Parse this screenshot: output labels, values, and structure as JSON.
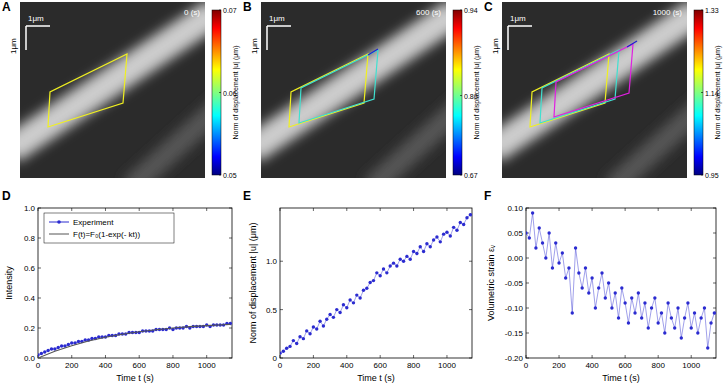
{
  "image_panels": [
    {
      "label": "A",
      "time_label": "0 (s)",
      "scale_label_x": "1μm",
      "scale_label_y": "1μm",
      "colorbar_title": "Norm of displacement |u| (μm)",
      "colorbar_range": [
        0.05,
        0.07
      ],
      "colorbar_ticks": [
        0.05,
        0.06,
        0.07
      ]
    },
    {
      "label": "B",
      "time_label": "600 (s)",
      "scale_label_x": "1μm",
      "scale_label_y": "1μm",
      "colorbar_title": "Norm of displacement |u| (μm)",
      "colorbar_range": [
        0.67,
        0.94
      ],
      "colorbar_ticks": [
        0.67,
        {
          "value": 0.8,
          "label": "0.80"
        },
        0.94
      ]
    },
    {
      "label": "C",
      "time_label": "1000 (s)",
      "scale_label_x": "1μm",
      "scale_label_y": "1μm",
      "colorbar_title": "Norm of displacement |u| (μm)",
      "colorbar_range": [
        0.95,
        1.33
      ],
      "colorbar_ticks": [
        0.95,
        1.14,
        1.33
      ]
    }
  ],
  "chart_data": [
    {
      "type": "line",
      "panel_label": "D",
      "x_label": "Time t (s)",
      "y_label": "Intensity",
      "xlim": [
        0,
        1150
      ],
      "ylim": [
        0,
        1
      ],
      "xticks": [
        0,
        200,
        400,
        600,
        800,
        1000
      ],
      "yticks": [
        {
          "value": 0,
          "label": "0.0"
        },
        0.2,
        0.4,
        0.6,
        0.8,
        {
          "value": 1,
          "label": "1.0"
        }
      ],
      "grid": false,
      "legend": "upper left",
      "series": [
        {
          "name": "Experiment",
          "color": "#2b2bd0",
          "marker": "circle",
          "line_style": "solid",
          "x": [
            0,
            20,
            40,
            60,
            80,
            100,
            120,
            140,
            160,
            180,
            200,
            220,
            240,
            260,
            280,
            300,
            320,
            340,
            360,
            380,
            400,
            420,
            440,
            460,
            480,
            500,
            520,
            540,
            560,
            580,
            600,
            620,
            640,
            660,
            680,
            700,
            720,
            740,
            760,
            780,
            800,
            820,
            840,
            860,
            880,
            900,
            920,
            940,
            960,
            980,
            1000,
            1020,
            1040,
            1060,
            1080,
            1100,
            1120,
            1140
          ],
          "values": [
            0.02,
            0.03,
            0.04,
            0.05,
            0.06,
            0.06,
            0.07,
            0.08,
            0.08,
            0.09,
            0.1,
            0.1,
            0.11,
            0.11,
            0.12,
            0.12,
            0.13,
            0.13,
            0.14,
            0.14,
            0.14,
            0.15,
            0.15,
            0.15,
            0.16,
            0.16,
            0.16,
            0.17,
            0.17,
            0.17,
            0.17,
            0.18,
            0.18,
            0.18,
            0.18,
            0.19,
            0.19,
            0.19,
            0.19,
            0.2,
            0.19,
            0.2,
            0.2,
            0.2,
            0.21,
            0.2,
            0.21,
            0.21,
            0.21,
            0.21,
            0.22,
            0.21,
            0.22,
            0.22,
            0.22,
            0.22,
            0.23,
            0.23
          ]
        },
        {
          "name": "F(t)=F₀(1-exp(- kt))",
          "color": "#555555",
          "marker": "none",
          "line_style": "solid",
          "x": [
            0,
            100,
            200,
            300,
            400,
            500,
            600,
            700,
            800,
            900,
            1000,
            1100,
            1140
          ],
          "values": [
            0,
            0.045,
            0.082,
            0.113,
            0.138,
            0.158,
            0.175,
            0.188,
            0.2,
            0.209,
            0.216,
            0.222,
            0.224
          ]
        }
      ]
    },
    {
      "type": "line",
      "panel_label": "E",
      "x_label": "Time t (s)",
      "y_label": "Norm of displacement |u| (μm)",
      "xlim": [
        0,
        1150
      ],
      "ylim": [
        0,
        1.55
      ],
      "xticks": [
        0,
        200,
        400,
        600,
        800,
        1000
      ],
      "yticks": [
        0,
        0.5,
        {
          "value": 1,
          "label": "1.0"
        }
      ],
      "grid": false,
      "color": "#2b2bd0",
      "marker": "circle",
      "line_style": "solid",
      "x": [
        0,
        20,
        40,
        60,
        80,
        100,
        120,
        140,
        160,
        180,
        200,
        220,
        240,
        260,
        280,
        300,
        320,
        340,
        360,
        380,
        400,
        420,
        440,
        460,
        480,
        500,
        520,
        540,
        560,
        580,
        600,
        620,
        640,
        660,
        680,
        700,
        720,
        740,
        760,
        780,
        800,
        820,
        840,
        860,
        880,
        900,
        920,
        940,
        960,
        980,
        1000,
        1020,
        1040,
        1060,
        1080,
        1100,
        1120,
        1140
      ],
      "values": [
        0.05,
        0.07,
        0.1,
        0.12,
        0.18,
        0.15,
        0.22,
        0.2,
        0.28,
        0.25,
        0.32,
        0.3,
        0.38,
        0.33,
        0.4,
        0.45,
        0.42,
        0.5,
        0.47,
        0.55,
        0.52,
        0.6,
        0.57,
        0.65,
        0.62,
        0.7,
        0.72,
        0.78,
        0.8,
        0.88,
        0.85,
        0.92,
        0.88,
        0.95,
        0.98,
        0.95,
        1.02,
        1.0,
        1.05,
        1.02,
        1.1,
        1.08,
        1.15,
        1.1,
        1.18,
        1.15,
        1.22,
        1.25,
        1.2,
        1.28,
        1.3,
        1.26,
        1.35,
        1.32,
        1.4,
        1.38,
        1.45,
        1.48
      ]
    },
    {
      "type": "line",
      "panel_label": "F",
      "x_label": "Time t (s)",
      "y_label": "Volumetric strain εᵥ",
      "xlim": [
        0,
        1150
      ],
      "ylim": [
        -0.2,
        0.1
      ],
      "xticks": [
        0,
        200,
        400,
        600,
        800,
        1000
      ],
      "yticks": [
        {
          "value": -0.2,
          "label": "-0.20"
        },
        -0.15,
        {
          "value": -0.1,
          "label": "-0.10"
        },
        -0.05,
        {
          "value": 0,
          "label": "0.00"
        },
        0.05,
        {
          "value": 0.1,
          "label": "0.10"
        }
      ],
      "grid": false,
      "color": "#2b2bd0",
      "marker": "circle",
      "line_style": "solid",
      "x": [
        0,
        20,
        40,
        60,
        80,
        100,
        120,
        140,
        160,
        180,
        200,
        220,
        240,
        260,
        280,
        300,
        320,
        340,
        360,
        380,
        400,
        420,
        440,
        460,
        480,
        500,
        520,
        540,
        560,
        580,
        600,
        620,
        640,
        660,
        680,
        700,
        720,
        740,
        760,
        780,
        800,
        820,
        840,
        860,
        880,
        900,
        920,
        940,
        960,
        980,
        1000,
        1020,
        1040,
        1060,
        1080,
        1100,
        1120,
        1140
      ],
      "values": [
        0.05,
        0.04,
        0.09,
        0.02,
        0.06,
        0.03,
        0,
        0.05,
        -0.02,
        0.03,
        -0.01,
        0.01,
        -0.04,
        -0.02,
        -0.11,
        0.02,
        -0.03,
        -0.06,
        -0.02,
        -0.07,
        -0.04,
        -0.1,
        -0.06,
        -0.03,
        -0.08,
        -0.05,
        -0.1,
        -0.07,
        -0.12,
        -0.06,
        -0.09,
        -0.13,
        -0.08,
        -0.11,
        -0.07,
        -0.12,
        -0.09,
        -0.14,
        -0.1,
        -0.08,
        -0.13,
        -0.11,
        -0.15,
        -0.09,
        -0.12,
        -0.14,
        -0.1,
        -0.16,
        -0.12,
        -0.09,
        -0.14,
        -0.11,
        -0.15,
        -0.12,
        -0.1,
        -0.18,
        -0.13,
        -0.11
      ]
    }
  ]
}
